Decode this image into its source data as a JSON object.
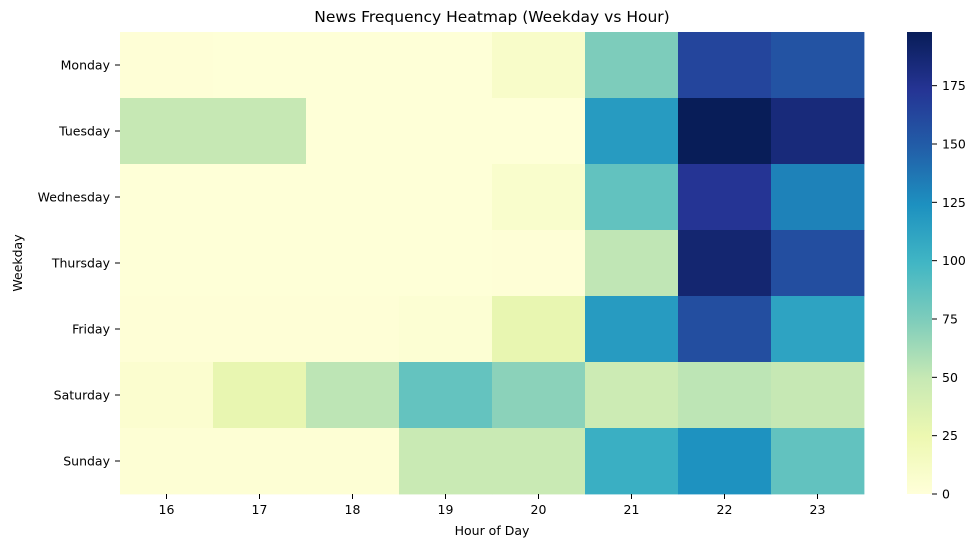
{
  "chart_data": {
    "type": "heatmap",
    "title": "News Frequency Heatmap (Weekday vs Hour)",
    "xlabel": "Hour of Day",
    "ylabel": "Weekday",
    "x_categories": [
      "16",
      "17",
      "18",
      "19",
      "20",
      "21",
      "22",
      "23"
    ],
    "y_categories": [
      "Monday",
      "Tuesday",
      "Wednesday",
      "Thursday",
      "Friday",
      "Saturday",
      "Sunday"
    ],
    "values": [
      [
        2,
        1,
        1,
        1,
        10,
        75,
        163,
        155
      ],
      [
        50,
        50,
        1,
        1,
        1,
        117,
        198,
        184
      ],
      [
        1,
        1,
        1,
        1,
        8,
        86,
        173,
        131
      ],
      [
        1,
        1,
        1,
        1,
        2,
        52,
        188,
        158
      ],
      [
        2,
        2,
        2,
        4,
        28,
        117,
        158,
        112
      ],
      [
        6,
        28,
        53,
        85,
        70,
        46,
        53,
        50
      ],
      [
        3,
        3,
        3,
        48,
        48,
        104,
        123,
        86
      ]
    ],
    "colorbar": {
      "min": 0,
      "max": 198,
      "ticks": [
        0,
        25,
        50,
        75,
        100,
        125,
        150,
        175
      ],
      "colormap": "YlGnBu"
    }
  }
}
